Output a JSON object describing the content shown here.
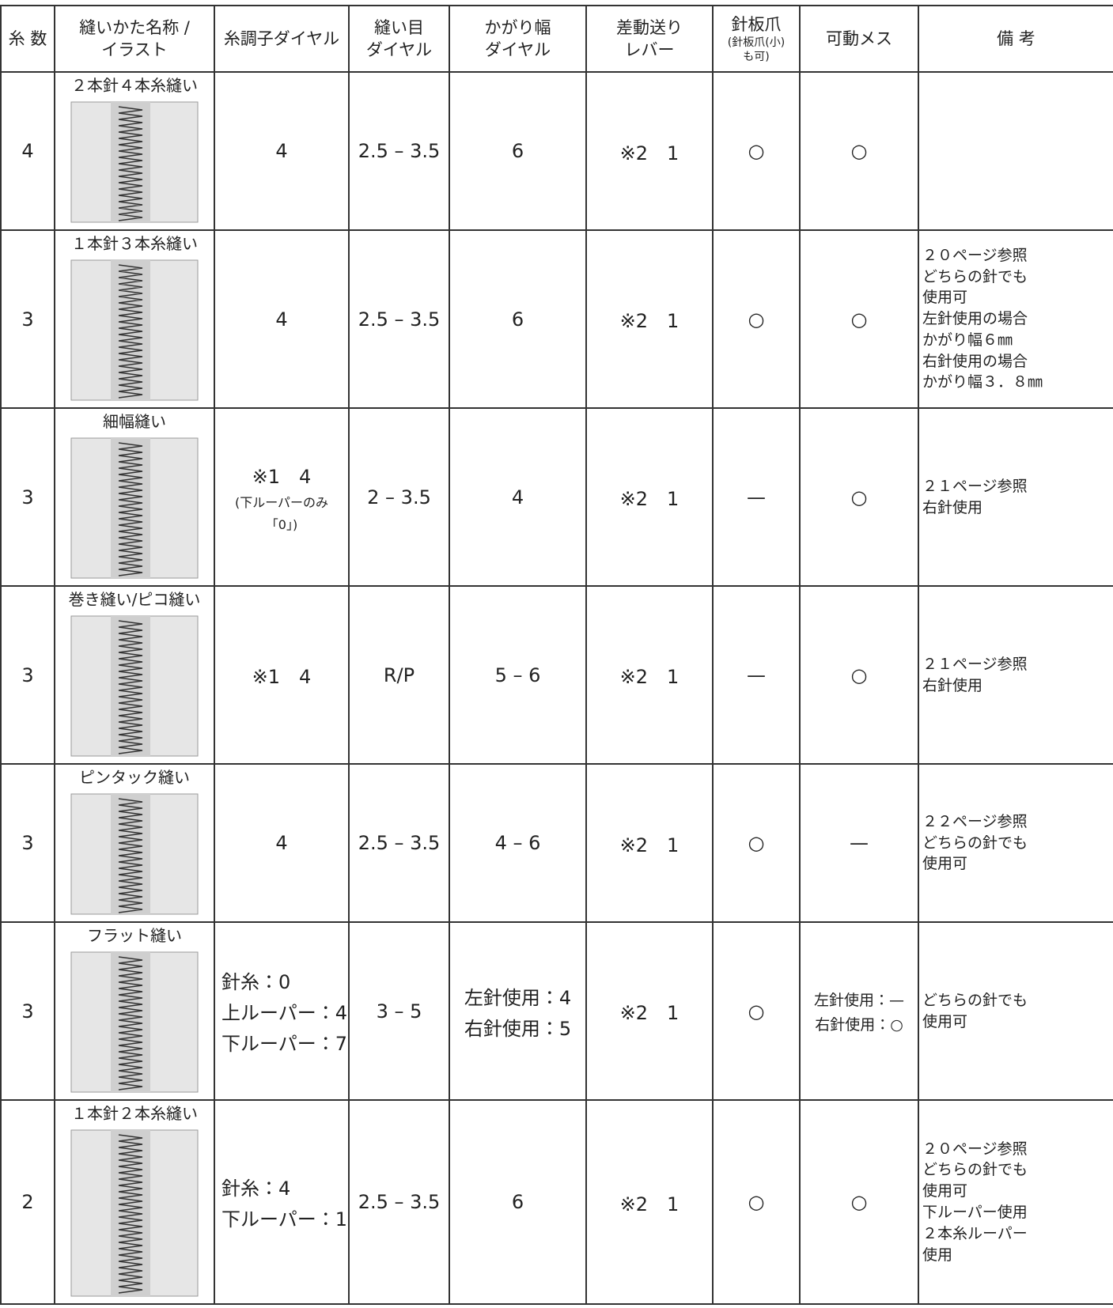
{
  "header": [
    "糸 数",
    [
      "縫いかた名称 /",
      "イラスト"
    ],
    "糸調子ダイヤル",
    [
      "縫い目",
      "ダイヤル"
    ],
    [
      "かがり幅",
      "ダイヤル"
    ],
    [
      "差動送り",
      "レバー"
    ],
    [
      "針板爪",
      "(針板爪(小)",
      "も可)"
    ],
    "可動メス",
    "備 考"
  ],
  "rows": [
    {
      "threads": "4",
      "name": "２本針４本糸縫い",
      "tension": [
        "4"
      ],
      "stitch": "2.5 – 3.5",
      "width": [
        "6"
      ],
      "diff": "※2　1",
      "plate": "○",
      "knife": [
        "○"
      ],
      "notes": []
    },
    {
      "threads": "3",
      "name": "１本針３本糸縫い",
      "tension": [
        "4"
      ],
      "stitch": "2.5 – 3.5",
      "width": [
        "6"
      ],
      "diff": "※2　1",
      "plate": "○",
      "knife": [
        "○"
      ],
      "notes": [
        "２０ページ参照",
        "どちらの針でも",
        "使用可",
        "左針使用の場合",
        "かがり幅６㎜",
        "右針使用の場合",
        "かがり幅３．８㎜"
      ]
    },
    {
      "threads": "3",
      "name": "細幅縫い",
      "tension": [
        "※1　4",
        "(下ルーパーのみ",
        "「0」)"
      ],
      "stitch": "2 – 3.5",
      "width": [
        "4"
      ],
      "diff": "※2　1",
      "plate": "—",
      "knife": [
        "○"
      ],
      "notes": [
        "２１ページ参照",
        "右針使用"
      ]
    },
    {
      "threads": "3",
      "name": "巻き縫い/ピコ縫い",
      "tension": [
        "※1　4"
      ],
      "stitch": "R/P",
      "width": [
        "5 – 6"
      ],
      "diff": "※2　1",
      "plate": "—",
      "knife": [
        "○"
      ],
      "notes": [
        "２１ページ参照",
        "右針使用"
      ]
    },
    {
      "threads": "3",
      "name": "ピンタック縫い",
      "tension": [
        "4"
      ],
      "stitch": "2.5 – 3.5",
      "width": [
        "4 – 6"
      ],
      "diff": "※2　1",
      "plate": "○",
      "knife": [
        "—"
      ],
      "notes": [
        "２２ページ参照",
        "どちらの針でも",
        "使用可"
      ]
    },
    {
      "threads": "3",
      "name": "フラット縫い",
      "tension": [
        "針糸：0",
        "上ルーパー：4",
        "下ルーパー：7"
      ],
      "stitch": "3 – 5",
      "width": [
        "左針使用：4",
        "右針使用：5"
      ],
      "diff": "※2　1",
      "plate": "○",
      "knife": [
        "左針使用：—",
        "右針使用：○"
      ],
      "notes": [
        "どちらの針でも",
        "使用可"
      ]
    },
    {
      "threads": "2",
      "name": "１本針２本糸縫い",
      "tension": [
        "針糸：4",
        "下ルーパー：1"
      ],
      "stitch": "2.5 – 3.5",
      "width": [
        "6"
      ],
      "diff": "※2　1",
      "plate": "○",
      "knife": [
        "○"
      ],
      "notes": [
        "２０ページ参照",
        "どちらの針でも",
        "使用可",
        "下ルーパー使用",
        "２本糸ルーパー",
        "使用"
      ]
    }
  ]
}
